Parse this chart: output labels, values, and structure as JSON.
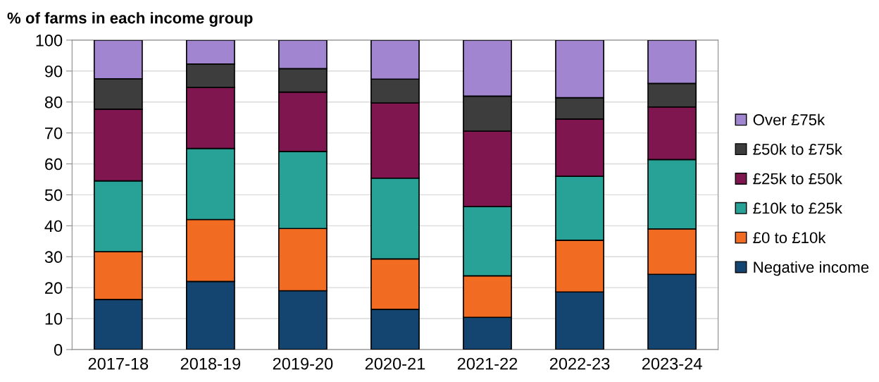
{
  "chart_data": {
    "type": "bar",
    "stacked": true,
    "ylabel": "% of farms in each income group",
    "categories": [
      "2017-18",
      "2018-19",
      "2019-20",
      "2020-21",
      "2021-22",
      "2022-23",
      "2023-24"
    ],
    "series": [
      {
        "name": "Negative income",
        "color": "#144571",
        "values": [
          16.2,
          22,
          19,
          13,
          10.4,
          18.6,
          24.3
        ]
      },
      {
        "name": "£0 to £10k",
        "color": "#f26b22",
        "values": [
          15.4,
          20,
          20.1,
          16.3,
          13.4,
          16.7,
          14.7
        ]
      },
      {
        "name": "£10k to £25k",
        "color": "#28a197",
        "values": [
          22.9,
          23,
          24.9,
          26.1,
          22.4,
          20.7,
          22.4
        ]
      },
      {
        "name": "£25k to £50k",
        "color": "#801650",
        "values": [
          23.2,
          19.7,
          19.2,
          24.3,
          24.4,
          18.5,
          17
        ]
      },
      {
        "name": "£50k to £75k",
        "color": "#3d3d3d",
        "values": [
          9.8,
          7.6,
          7.6,
          7.7,
          11.3,
          6.9,
          7.6
        ]
      },
      {
        "name": "Over £75k",
        "color": "#a285d1",
        "values": [
          12.5,
          7.7,
          9.2,
          12.6,
          18.1,
          18.6,
          14
        ]
      }
    ],
    "ylim": [
      0,
      100
    ],
    "yticks": [
      0,
      10,
      20,
      30,
      40,
      50,
      60,
      70,
      80,
      90,
      100
    ],
    "grid": "y",
    "legend": "right"
  }
}
